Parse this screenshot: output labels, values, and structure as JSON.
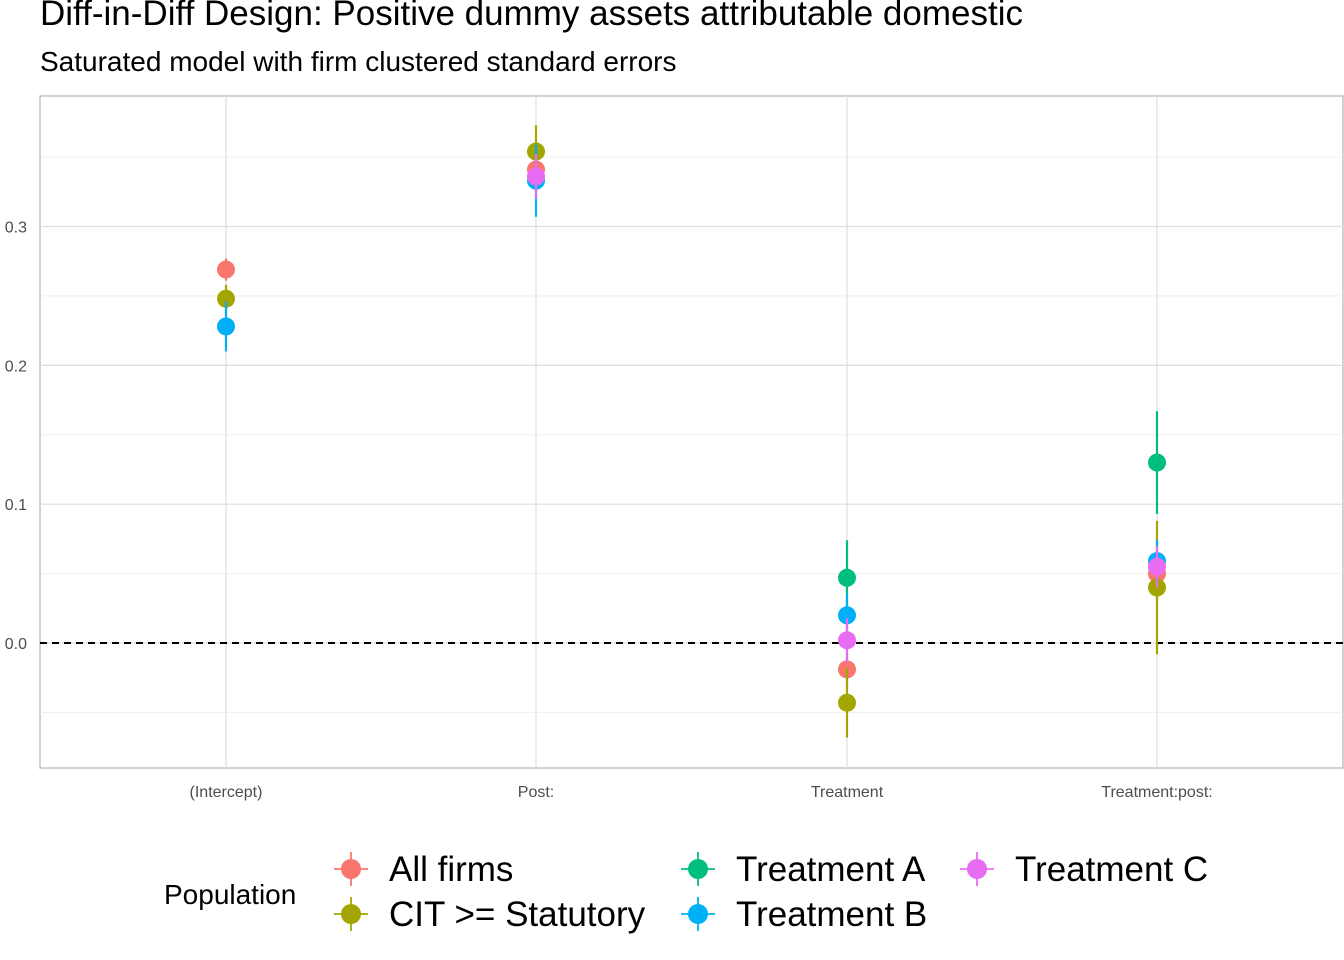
{
  "chart_data": {
    "type": "scatter",
    "title": "Diff-in-Diff Design: Positive dummy assets attributable domestic",
    "subtitle": "Saturated model with firm clustered standard errors",
    "xlabel": "",
    "ylabel": "",
    "categories": [
      "(Intercept)",
      "Post:",
      "Treatment",
      "Treatment:post:"
    ],
    "y_ticks": [
      0.0,
      0.1,
      0.2,
      0.3
    ],
    "y_tick_labels": [
      "0.0",
      "0.1",
      "0.2",
      "0.3"
    ],
    "ylim": [
      -0.09,
      0.394
    ],
    "reference_line": {
      "y": 0,
      "style": "dashed"
    },
    "grid": true,
    "legend": {
      "title": "Population",
      "position": "bottom"
    },
    "series": [
      {
        "name": "All firms",
        "color": "#F8766D",
        "points": [
          {
            "category": "(Intercept)",
            "estimate": 0.269,
            "low": 0.261,
            "high": 0.277
          },
          {
            "category": "Post:",
            "estimate": 0.341,
            "low": 0.33,
            "high": 0.352
          },
          {
            "category": "Treatment",
            "estimate": -0.019,
            "low": -0.03,
            "high": -0.008
          },
          {
            "category": "Treatment:post:",
            "estimate": 0.05,
            "low": 0.036,
            "high": 0.064
          }
        ]
      },
      {
        "name": "CIT >= Statutory",
        "color": "#A3A500",
        "points": [
          {
            "category": "(Intercept)",
            "estimate": 0.248,
            "low": 0.238,
            "high": 0.258
          },
          {
            "category": "Post:",
            "estimate": 0.354,
            "low": 0.335,
            "high": 0.373
          },
          {
            "category": "Treatment",
            "estimate": -0.043,
            "low": -0.068,
            "high": -0.018
          },
          {
            "category": "Treatment:post:",
            "estimate": 0.04,
            "low": -0.008,
            "high": 0.088
          }
        ]
      },
      {
        "name": "Treatment A",
        "color": "#00BF7D",
        "points": [
          {
            "category": "Treatment",
            "estimate": 0.047,
            "low": 0.02,
            "high": 0.074
          },
          {
            "category": "Treatment:post:",
            "estimate": 0.13,
            "low": 0.093,
            "high": 0.167
          }
        ]
      },
      {
        "name": "Treatment B",
        "color": "#00B0F6",
        "points": [
          {
            "category": "(Intercept)",
            "estimate": 0.228,
            "low": 0.21,
            "high": 0.246
          },
          {
            "category": "Post:",
            "estimate": 0.333,
            "low": 0.307,
            "high": 0.359
          },
          {
            "category": "Treatment",
            "estimate": 0.02,
            "low": 0.004,
            "high": 0.036
          },
          {
            "category": "Treatment:post:",
            "estimate": 0.059,
            "low": 0.044,
            "high": 0.074
          }
        ]
      },
      {
        "name": "Treatment C",
        "color": "#E76BF3",
        "points": [
          {
            "category": "Post:",
            "estimate": 0.336,
            "low": 0.32,
            "high": 0.352
          },
          {
            "category": "Treatment",
            "estimate": 0.002,
            "low": -0.014,
            "high": 0.018
          },
          {
            "category": "Treatment:post:",
            "estimate": 0.055,
            "low": 0.04,
            "high": 0.07
          }
        ]
      }
    ]
  }
}
